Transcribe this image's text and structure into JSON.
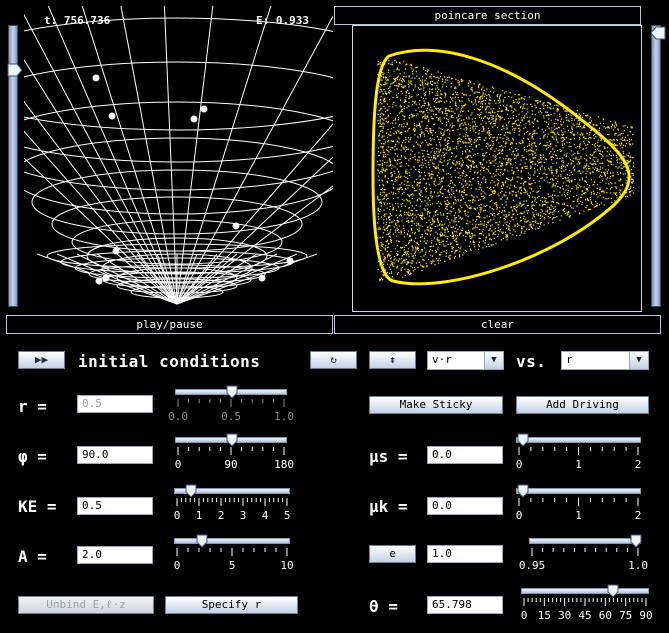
{
  "sim": {
    "time_label": "t: 756.736",
    "energy_label": "E: 0.933",
    "play_label": "play/pause"
  },
  "poincare": {
    "title": "poincare section",
    "clear_label": "clear",
    "x_select": "v·r",
    "vs_label": "vs.",
    "y_select": "r"
  },
  "icons": {
    "play": "fast-forward-icon",
    "reset": "refresh-icon",
    "crosshair": "axes-icon"
  },
  "initial": {
    "heading": "initial conditions"
  },
  "r": {
    "label": "r =",
    "value": "0.5",
    "ticks": [
      "0.0",
      "0.5",
      "1.0"
    ],
    "slider_fraction": 0.5
  },
  "phi": {
    "label": "φ =",
    "value": "90.0",
    "ticks": [
      "0",
      "90",
      "180"
    ],
    "slider_fraction": 0.5
  },
  "ke": {
    "label": "KE =",
    "value": "0.5",
    "ticks": [
      "0",
      "1",
      "2",
      "3",
      "4",
      "5"
    ],
    "slider_fraction": 0.1
  },
  "a": {
    "label": "A =",
    "value": "2.0",
    "ticks": [
      "0",
      "5",
      "10"
    ],
    "slider_fraction": 0.2
  },
  "buttons": {
    "unbind": "Unbind E,ℓ·z",
    "specify": "Specify r",
    "sticky": "Make Sticky",
    "driving": "Add Driving",
    "e_btn": "e"
  },
  "mus": {
    "label": "μs =",
    "value": "0.0",
    "ticks": [
      "0",
      "1",
      "2"
    ],
    "slider_fraction": 0.0
  },
  "muk": {
    "label": "μk =",
    "value": "0.0",
    "ticks": [
      "0",
      "1",
      "2"
    ],
    "slider_fraction": 0.0
  },
  "e": {
    "value": "1.0",
    "ticks": [
      "0.95",
      "1.0"
    ],
    "slider_fraction": 1.0
  },
  "theta": {
    "label": "θ =",
    "value": "65.798",
    "ticks": [
      "0",
      "15",
      "30",
      "45",
      "60",
      "75",
      "90"
    ],
    "slider_fraction": 0.73
  }
}
